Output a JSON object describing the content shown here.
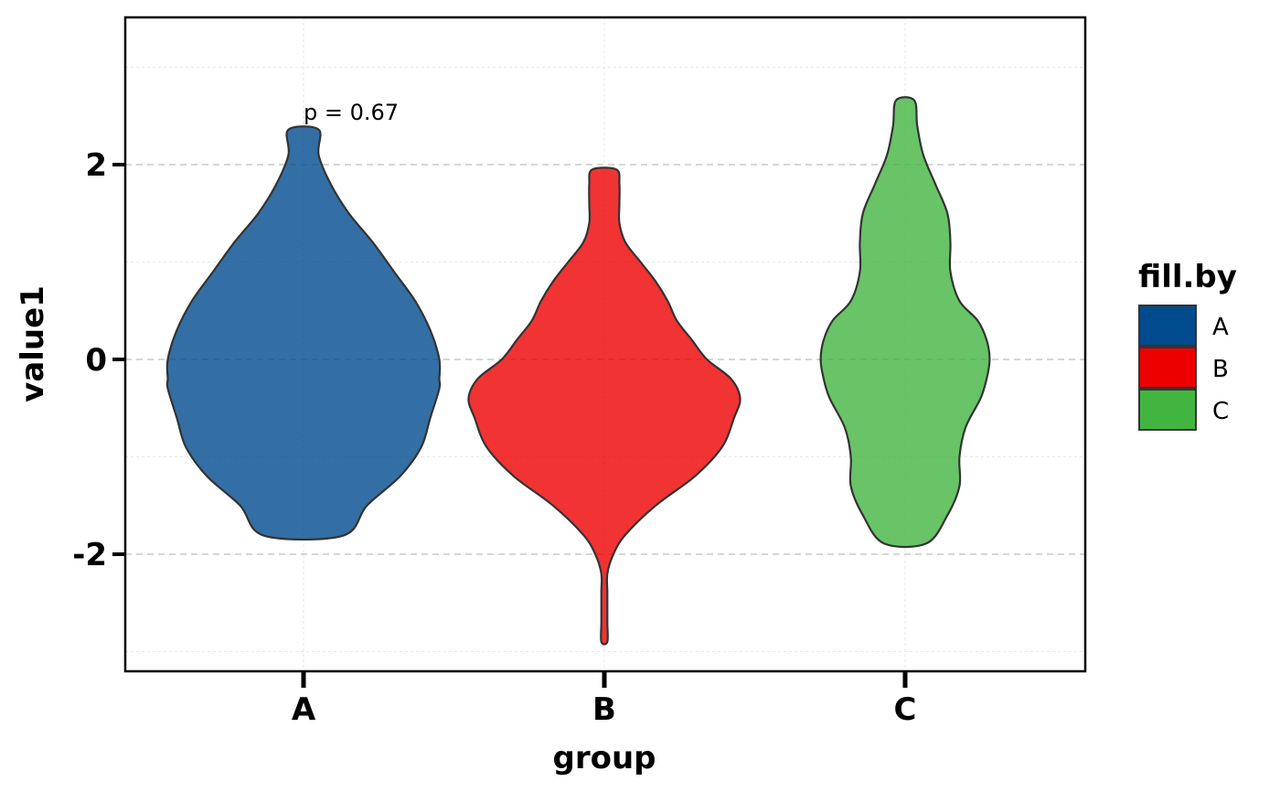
{
  "chart_data": {
    "type": "violin",
    "title": "",
    "xlabel": "group",
    "ylabel": "value1",
    "categories": [
      "A",
      "B",
      "C"
    ],
    "ylim": [
      -3.2,
      3.5
    ],
    "y_ticks": [
      -2,
      0,
      2
    ],
    "y_tick_labels": [
      "-2",
      "0",
      "2"
    ],
    "grid": true,
    "legend": {
      "title": "fill.by",
      "position": "right",
      "entries": [
        {
          "label": "A",
          "color": "#004B8D"
        },
        {
          "label": "B",
          "color": "#ED0000"
        },
        {
          "label": "C",
          "color": "#42B540"
        }
      ]
    },
    "annotations": [
      {
        "text": "p = 0.67",
        "x": "A",
        "y": 2.5
      }
    ],
    "series": [
      {
        "name": "A",
        "fill": "#004B8D",
        "min": -1.81,
        "max": 2.36,
        "density": [
          [
            -1.81,
            0.13
          ],
          [
            -1.5,
            0.21
          ],
          [
            -1.2,
            0.32
          ],
          [
            -0.9,
            0.39
          ],
          [
            -0.6,
            0.42
          ],
          [
            -0.3,
            0.45
          ],
          [
            -0.2,
            0.45
          ],
          [
            0.0,
            0.45
          ],
          [
            0.3,
            0.42
          ],
          [
            0.6,
            0.37
          ],
          [
            0.9,
            0.3
          ],
          [
            1.2,
            0.23
          ],
          [
            1.5,
            0.15
          ],
          [
            1.8,
            0.09
          ],
          [
            2.1,
            0.05
          ],
          [
            2.36,
            0.05
          ]
        ]
      },
      {
        "name": "B",
        "fill": "#ED0000",
        "min": -2.9,
        "max": 1.95,
        "density": [
          [
            -2.9,
            0.01
          ],
          [
            -2.7,
            0.01
          ],
          [
            -2.4,
            0.01
          ],
          [
            -2.2,
            0.01
          ],
          [
            -2.0,
            0.03
          ],
          [
            -1.8,
            0.07
          ],
          [
            -1.5,
            0.17
          ],
          [
            -1.2,
            0.3
          ],
          [
            -0.9,
            0.39
          ],
          [
            -0.6,
            0.43
          ],
          [
            -0.4,
            0.45
          ],
          [
            -0.2,
            0.42
          ],
          [
            0.0,
            0.34
          ],
          [
            0.2,
            0.29
          ],
          [
            0.4,
            0.24
          ],
          [
            0.6,
            0.21
          ],
          [
            0.8,
            0.17
          ],
          [
            1.0,
            0.12
          ],
          [
            1.2,
            0.07
          ],
          [
            1.4,
            0.05
          ],
          [
            1.6,
            0.05
          ],
          [
            1.8,
            0.05
          ],
          [
            1.95,
            0.04
          ]
        ]
      },
      {
        "name": "C",
        "fill": "#42B540",
        "min": -1.89,
        "max": 2.66,
        "density": [
          [
            -1.89,
            0.07
          ],
          [
            -1.6,
            0.14
          ],
          [
            -1.3,
            0.18
          ],
          [
            -1.0,
            0.18
          ],
          [
            -0.7,
            0.2
          ],
          [
            -0.4,
            0.25
          ],
          [
            -0.2,
            0.27
          ],
          [
            0.0,
            0.28
          ],
          [
            0.2,
            0.27
          ],
          [
            0.4,
            0.24
          ],
          [
            0.6,
            0.18
          ],
          [
            0.9,
            0.15
          ],
          [
            1.2,
            0.15
          ],
          [
            1.5,
            0.14
          ],
          [
            1.8,
            0.1
          ],
          [
            2.1,
            0.06
          ],
          [
            2.4,
            0.04
          ],
          [
            2.66,
            0.03
          ]
        ]
      }
    ]
  }
}
